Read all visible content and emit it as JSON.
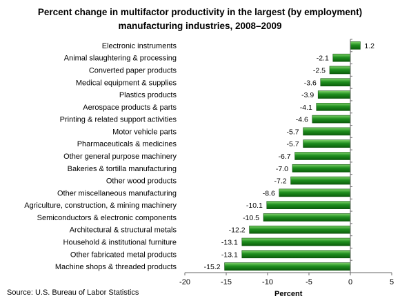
{
  "chart_data": {
    "type": "bar",
    "orientation": "horizontal",
    "title_lines": [
      "Percent change in multifactor productivity in the largest (by employment)",
      "manufacturing industries, 2008–2009"
    ],
    "xlabel": "Percent",
    "ylabel": "",
    "xlim": [
      -20,
      5
    ],
    "xticks": [
      -20,
      -15,
      -10,
      -5,
      0,
      5
    ],
    "grid": false,
    "source": "Source: U.S. Bureau of Labor Statistics",
    "bar_color": "#1f8f1f",
    "categories": [
      "Electronic instruments",
      "Animal slaughtering & processing",
      "Converted paper products",
      "Medical equipment & supplies",
      "Plastics products",
      "Aerospace products & parts",
      "Printing & related support activities",
      "Motor vehicle parts",
      "Pharmaceuticals & medicines",
      "Other general purpose machinery",
      "Bakeries & tortilla manufacturing",
      "Other wood products",
      "Other miscellaneous manufacturing",
      "Agriculture, construction, & mining machinery",
      "Semiconductors & electronic components",
      "Architectural & structural metals",
      "Household & institutional  furniture",
      "Other fabricated metal products",
      "Machine shops & threaded products"
    ],
    "values": [
      1.2,
      -2.1,
      -2.5,
      -3.6,
      -3.9,
      -4.1,
      -4.6,
      -5.7,
      -5.7,
      -6.7,
      -7.0,
      -7.2,
      -8.6,
      -10.1,
      -10.5,
      -12.2,
      -13.1,
      -13.1,
      -15.2
    ],
    "value_labels": [
      "1.2",
      "-2.1",
      "-2.5",
      "-3.6",
      "-3.9",
      "-4.1",
      "-4.6",
      "-5.7",
      "-5.7",
      "-6.7",
      "-7.0",
      "-7.2",
      "-8.6",
      "-10.1",
      "-10.5",
      "-12.2",
      "-13.1",
      "-13.1",
      "-15.2"
    ]
  }
}
